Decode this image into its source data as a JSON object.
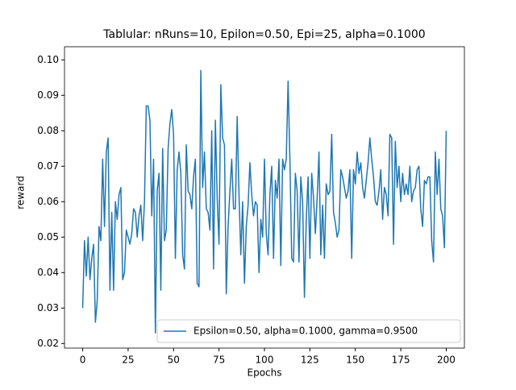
{
  "chart_data": {
    "type": "line",
    "title": "Tablular: nRuns=10, Epilon=0.50, Epi=25, alpha=0.1000",
    "xlabel": "Epochs",
    "ylabel": "reward",
    "x": [
      0,
      1,
      2,
      3,
      4,
      5,
      6,
      7,
      8,
      9,
      10,
      11,
      12,
      13,
      14,
      15,
      16,
      17,
      18,
      19,
      20,
      21,
      22,
      23,
      24,
      25,
      26,
      27,
      28,
      29,
      30,
      31,
      32,
      33,
      34,
      35,
      36,
      37,
      38,
      39,
      40,
      41,
      42,
      43,
      44,
      45,
      46,
      47,
      48,
      49,
      50,
      51,
      52,
      53,
      54,
      55,
      56,
      57,
      58,
      59,
      60,
      61,
      62,
      63,
      64,
      65,
      66,
      67,
      68,
      69,
      70,
      71,
      72,
      73,
      74,
      75,
      76,
      77,
      78,
      79,
      80,
      81,
      82,
      83,
      84,
      85,
      86,
      87,
      88,
      89,
      90,
      91,
      92,
      93,
      94,
      95,
      96,
      97,
      98,
      99,
      100,
      101,
      102,
      103,
      104,
      105,
      106,
      107,
      108,
      109,
      110,
      111,
      112,
      113,
      114,
      115,
      116,
      117,
      118,
      119,
      120,
      121,
      122,
      123,
      124,
      125,
      126,
      127,
      128,
      129,
      130,
      131,
      132,
      133,
      134,
      135,
      136,
      137,
      138,
      139,
      140,
      141,
      142,
      143,
      144,
      145,
      146,
      147,
      148,
      149,
      150,
      151,
      152,
      153,
      154,
      155,
      156,
      157,
      158,
      159,
      160,
      161,
      162,
      163,
      164,
      165,
      166,
      167,
      168,
      169,
      170,
      171,
      172,
      173,
      174,
      175,
      176,
      177,
      178,
      179,
      180,
      181,
      182,
      183,
      184,
      185,
      186,
      187,
      188,
      189,
      190,
      191,
      192,
      193,
      194,
      195,
      196,
      197,
      198,
      199,
      200
    ],
    "series": [
      {
        "name": "Epsilon=0.50, alpha=0.1000, gamma=0.9500",
        "color": "#1f77b4",
        "values": [
          0.03,
          0.049,
          0.039,
          0.05,
          0.038,
          0.044,
          0.048,
          0.026,
          0.032,
          0.053,
          0.049,
          0.072,
          0.053,
          0.074,
          0.078,
          0.035,
          0.057,
          0.035,
          0.06,
          0.055,
          0.062,
          0.064,
          0.038,
          0.04,
          0.052,
          0.05,
          0.048,
          0.051,
          0.058,
          0.057,
          0.05,
          0.056,
          0.059,
          0.049,
          0.06,
          0.087,
          0.087,
          0.083,
          0.056,
          0.072,
          0.023,
          0.063,
          0.068,
          0.035,
          0.075,
          0.049,
          0.052,
          0.075,
          0.082,
          0.086,
          0.079,
          0.044,
          0.069,
          0.074,
          0.068,
          0.045,
          0.041,
          0.076,
          0.063,
          0.062,
          0.058,
          0.067,
          0.072,
          0.037,
          0.036,
          0.097,
          0.064,
          0.074,
          0.058,
          0.057,
          0.052,
          0.08,
          0.041,
          0.083,
          0.061,
          0.048,
          0.093,
          0.078,
          0.076,
          0.034,
          0.053,
          0.063,
          0.072,
          0.058,
          0.058,
          0.084,
          0.062,
          0.045,
          0.06,
          0.037,
          0.053,
          0.059,
          0.071,
          0.062,
          0.056,
          0.06,
          0.059,
          0.04,
          0.055,
          0.05,
          0.072,
          0.051,
          0.045,
          0.062,
          0.07,
          0.044,
          0.066,
          0.061,
          0.072,
          0.042,
          0.072,
          0.069,
          0.072,
          0.094,
          0.072,
          0.044,
          0.043,
          0.068,
          0.063,
          0.043,
          0.067,
          0.06,
          0.033,
          0.055,
          0.067,
          0.044,
          0.068,
          0.061,
          0.051,
          0.061,
          0.074,
          0.045,
          0.059,
          0.044,
          0.065,
          0.062,
          0.063,
          0.079,
          0.057,
          0.054,
          0.05,
          0.052,
          0.069,
          0.067,
          0.064,
          0.061,
          0.063,
          0.069,
          0.044,
          0.069,
          0.065,
          0.074,
          0.068,
          0.071,
          0.064,
          0.061,
          0.066,
          0.071,
          0.078,
          0.072,
          0.067,
          0.06,
          0.059,
          0.063,
          0.069,
          0.055,
          0.064,
          0.062,
          0.056,
          0.079,
          0.078,
          0.048,
          0.077,
          0.064,
          0.07,
          0.06,
          0.068,
          0.062,
          0.065,
          0.062,
          0.07,
          0.06,
          0.063,
          0.064,
          0.069,
          0.07,
          0.058,
          0.053,
          0.066,
          0.065,
          0.067,
          0.067,
          0.049,
          0.043,
          0.074,
          0.062,
          0.072,
          0.058,
          0.056,
          0.047,
          0.08
        ]
      }
    ],
    "xlim": [
      -10,
      210
    ],
    "ylim": [
      0.0187,
      0.1037
    ],
    "xticks": [
      0,
      25,
      50,
      75,
      100,
      125,
      150,
      175,
      200
    ],
    "yticks": [
      0.02,
      0.03,
      0.04,
      0.05,
      0.06,
      0.07,
      0.08,
      0.09,
      {
        "value": 0.1,
        "label": "0.10"
      }
    ],
    "legend": "lower right"
  }
}
